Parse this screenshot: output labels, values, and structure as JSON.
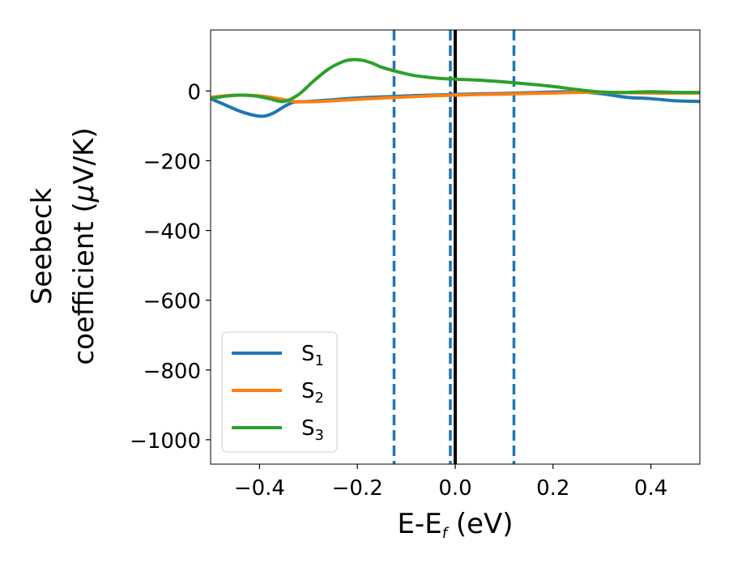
{
  "chart_data": {
    "type": "line",
    "title": "",
    "xlabel": {
      "main": "E-E",
      "subscript": "f",
      "suffix": " (eV)"
    },
    "ylabel": {
      "line1": "Seebeck",
      "line2_prefix": "coefficient  (",
      "mu": "μ",
      "line2_suffix": "V/K)"
    },
    "xlim": [
      -0.5,
      0.5
    ],
    "ylim": [
      -1070,
      175
    ],
    "xticks": [
      -0.4,
      -0.2,
      0.0,
      0.2,
      0.4
    ],
    "xtick_labels": [
      "−0.4",
      "−0.2",
      "0.0",
      "0.2",
      "0.4"
    ],
    "yticks": [
      0,
      -200,
      -400,
      -600,
      -800,
      -1000
    ],
    "ytick_labels": [
      "0",
      "−200",
      "−400",
      "−600",
      "−800",
      "−1000"
    ],
    "grid": false,
    "legend_position": "lower-left",
    "vertical_lines": [
      {
        "x": -0.125,
        "style": "dashed",
        "color": "#1f77b4"
      },
      {
        "x": -0.01,
        "style": "dashed",
        "color": "#1f77b4"
      },
      {
        "x": 0.0,
        "style": "solid",
        "color": "#000000"
      },
      {
        "x": 0.12,
        "style": "dashed",
        "color": "#1f77b4"
      }
    ],
    "series": [
      {
        "name_base": "S",
        "name_sub": "1",
        "color": "#1f77b4",
        "x": [
          -0.5,
          -0.47,
          -0.44,
          -0.41,
          -0.39,
          -0.37,
          -0.35,
          -0.33,
          -0.3,
          -0.25,
          -0.2,
          -0.15,
          -0.1,
          -0.05,
          0.0,
          0.05,
          0.1,
          0.15,
          0.2,
          0.25,
          0.3,
          0.35,
          0.4,
          0.45,
          0.5
        ],
        "y": [
          -22,
          -40,
          -58,
          -70,
          -72,
          -62,
          -45,
          -32,
          -30,
          -25,
          -20,
          -17,
          -14,
          -12,
          -10,
          -8,
          -7,
          -5,
          -3,
          -2,
          -8,
          -18,
          -22,
          -28,
          -30
        ]
      },
      {
        "name_base": "S",
        "name_sub": "2",
        "color": "#ff7f0e",
        "x": [
          -0.5,
          -0.45,
          -0.4,
          -0.36,
          -0.33,
          -0.3,
          -0.25,
          -0.2,
          -0.15,
          -0.1,
          -0.05,
          0.0,
          0.05,
          0.1,
          0.15,
          0.2,
          0.25,
          0.3,
          0.35,
          0.4,
          0.45,
          0.5
        ],
        "y": [
          -18,
          -12,
          -14,
          -22,
          -30,
          -31,
          -28,
          -24,
          -20,
          -17,
          -14,
          -12,
          -10,
          -9,
          -7,
          -6,
          -4,
          -4,
          -5,
          -6,
          -6,
          -6
        ]
      },
      {
        "name_base": "S",
        "name_sub": "3",
        "color": "#2ca02c",
        "x": [
          -0.5,
          -0.47,
          -0.44,
          -0.41,
          -0.38,
          -0.35,
          -0.32,
          -0.29,
          -0.26,
          -0.23,
          -0.21,
          -0.19,
          -0.17,
          -0.15,
          -0.12,
          -0.09,
          -0.06,
          -0.03,
          0.0,
          0.05,
          0.1,
          0.15,
          0.2,
          0.25,
          0.3,
          0.35,
          0.4,
          0.45,
          0.5
        ],
        "y": [
          -22,
          -15,
          -12,
          -14,
          -22,
          -30,
          -10,
          28,
          62,
          84,
          90,
          88,
          80,
          68,
          56,
          46,
          40,
          36,
          34,
          31,
          26,
          20,
          13,
          4,
          -3,
          -4,
          -2,
          -4,
          -4
        ]
      }
    ]
  }
}
